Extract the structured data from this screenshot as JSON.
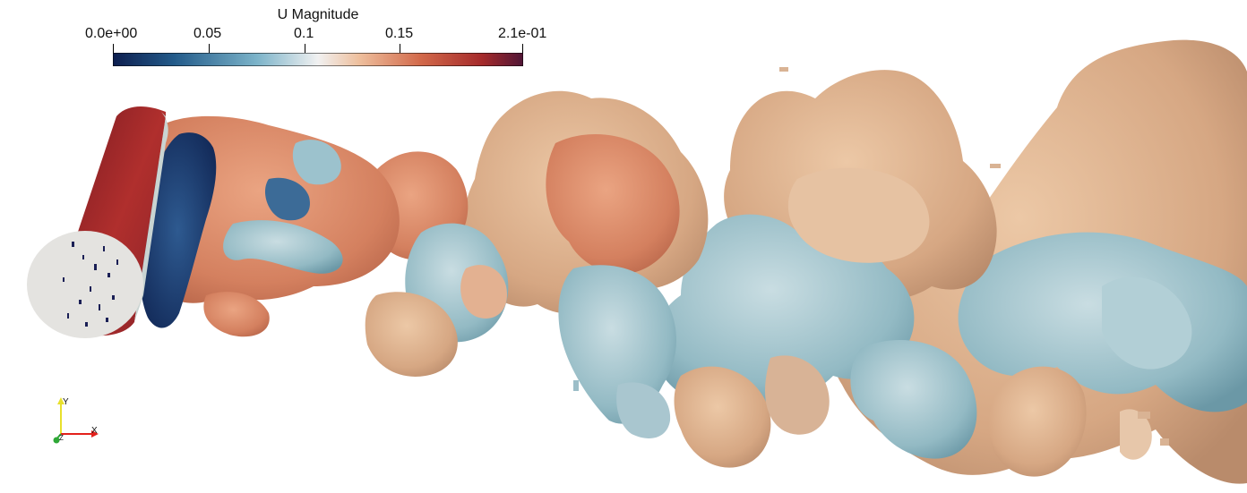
{
  "legend": {
    "title": "U Magnitude",
    "ticks": [
      "0.0e+00",
      "0.05",
      "0.1",
      "0.15",
      "2.1e-01"
    ],
    "range": [
      0.0,
      0.21
    ],
    "colormap": [
      "#0d1e4f",
      "#235b8a",
      "#7bb3c9",
      "#f1f1f1",
      "#eebf9d",
      "#d2694a",
      "#a52a2b",
      "#501636"
    ]
  },
  "orientation_axes": {
    "x_label": "X",
    "y_label": "Y",
    "z_label": "Z",
    "x_color": "#e3201b",
    "y_color": "#e8e02c",
    "z_color": "#2ea836"
  },
  "scene": {
    "background": "#ffffff",
    "cylinder_color": "#a52a2b",
    "cylinder_cap_color": "#e4e3e0",
    "iso_warm_color": "#ddb08e",
    "iso_cool_color": "#8fb9c4",
    "iso_salmon_color": "#d9886a",
    "iso_dark_color": "#1d3c70"
  }
}
